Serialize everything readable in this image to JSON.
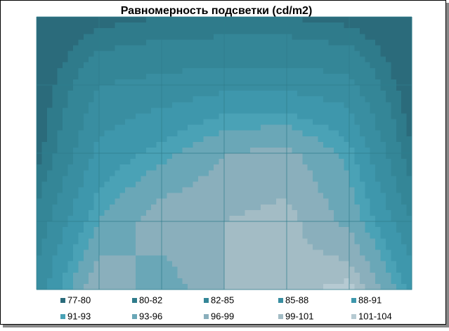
{
  "chart_data": {
    "type": "contour",
    "title": "Равномерность подсветки (cd/m2)",
    "values": [
      [
        77,
        79,
        80,
        80,
        80,
        79,
        77
      ],
      [
        78,
        85,
        86,
        87,
        87,
        86,
        78
      ],
      [
        79,
        89,
        92,
        96,
        97,
        92,
        80
      ],
      [
        83,
        93,
        98,
        99,
        100,
        95,
        85
      ],
      [
        86,
        99,
        94,
        99,
        100,
        102,
        90
      ]
    ],
    "bands": [
      {
        "label": "77-80",
        "min": 77,
        "max": 80,
        "color": "#2b6b7b"
      },
      {
        "label": "80-82",
        "min": 80,
        "max": 82,
        "color": "#2f7b8b"
      },
      {
        "label": "82-85",
        "min": 82,
        "max": 85,
        "color": "#348697"
      },
      {
        "label": "85-88",
        "min": 85,
        "max": 88,
        "color": "#398ea1"
      },
      {
        "label": "88-91",
        "min": 88,
        "max": 91,
        "color": "#3e97ac"
      },
      {
        "label": "91-93",
        "min": 91,
        "max": 93,
        "color": "#4aa2b6"
      },
      {
        "label": "93-96",
        "min": 93,
        "max": 96,
        "color": "#6aa7b7"
      },
      {
        "label": "96-99",
        "min": 96,
        "max": 99,
        "color": "#8aafbc"
      },
      {
        "label": "99-101",
        "min": 99,
        "max": 101,
        "color": "#a3bcc5"
      },
      {
        "label": "101-104",
        "min": 101,
        "max": 104,
        "color": "#b6cad2"
      }
    ]
  }
}
